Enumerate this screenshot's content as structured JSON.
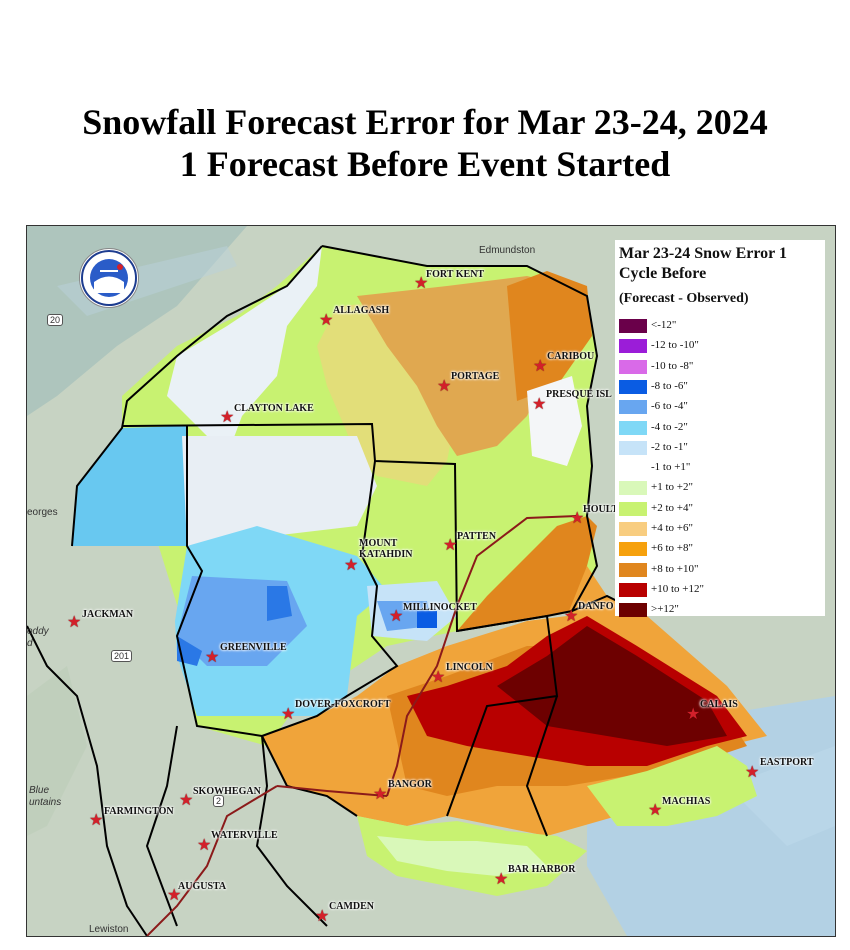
{
  "title_line1": "Snowfall Forecast Error for Mar 23-24, 2024",
  "title_line2": "1 Forecast Before Event Started",
  "legend": {
    "title": "Mar 23-24 Snow Error 1 Cycle Before",
    "subtitle": "(Forecast - Observed)",
    "items": [
      {
        "label": "<-12\"",
        "color": "#6a004a"
      },
      {
        "label": "-12 to -10\"",
        "color": "#9b1dd8"
      },
      {
        "label": "-10 to -8\"",
        "color": "#d96ae8"
      },
      {
        "label": "-8 to -6\"",
        "color": "#0a5ce3"
      },
      {
        "label": "-6 to -4\"",
        "color": "#68a6f0"
      },
      {
        "label": "-4 to -2\"",
        "color": "#7fd8f6"
      },
      {
        "label": "-2 to -1\"",
        "color": "#c6e3f8"
      },
      {
        "label": "-1 to +1\"",
        "color": "#ffffff"
      },
      {
        "label": "+1 to +2\"",
        "color": "#d9f8b9"
      },
      {
        "label": "+2 to +4\"",
        "color": "#c8f271"
      },
      {
        "label": "+4 to +6\"",
        "color": "#f8cd80"
      },
      {
        "label": "+6 to +8\"",
        "color": "#f6a10d"
      },
      {
        "label": "+8 to +10\"",
        "color": "#e0861e"
      },
      {
        "label": "+10 to +12\"",
        "color": "#b80000"
      },
      {
        "label": ">+12\"",
        "color": "#6d0000"
      }
    ]
  },
  "background_labels": {
    "edmundston": "Edmundston",
    "georges": "eorges",
    "blue_mountains_1": "Blue",
    "blue_mountains_2": "untains",
    "lewiston": "Lewiston",
    "roddy_1": "oddy",
    "roddy_2": "d",
    "route_20": "20",
    "route_201": "201",
    "route_2": "2"
  },
  "cities": [
    {
      "key": "fort_kent",
      "name": "FORT KENT"
    },
    {
      "key": "allagash",
      "name": "ALLAGASH"
    },
    {
      "key": "caribou",
      "name": "CARIBOU"
    },
    {
      "key": "portage",
      "name": "PORTAGE"
    },
    {
      "key": "presque_isle",
      "name": "PRESQUE ISL"
    },
    {
      "key": "clayton_lake",
      "name": "CLAYTON LAKE"
    },
    {
      "key": "houlton",
      "name": "HOULT"
    },
    {
      "key": "patten",
      "name": "PATTEN"
    },
    {
      "key": "mount_katahdin_1",
      "name": "MOUNT"
    },
    {
      "key": "mount_katahdin_2",
      "name": "KATAHDIN"
    },
    {
      "key": "jackman",
      "name": "JACKMAN"
    },
    {
      "key": "millinocket",
      "name": "MILLINOCKET"
    },
    {
      "key": "danforth",
      "name": "DANFO"
    },
    {
      "key": "greenville",
      "name": "GREENVILLE"
    },
    {
      "key": "lincoln",
      "name": "LINCOLN"
    },
    {
      "key": "dover_foxcroft",
      "name": "DOVER-FOXCROFT"
    },
    {
      "key": "calais",
      "name": "CALAIS"
    },
    {
      "key": "eastport",
      "name": "EASTPORT"
    },
    {
      "key": "skowhegan",
      "name": "SKOWHEGAN"
    },
    {
      "key": "bangor",
      "name": "BANGOR"
    },
    {
      "key": "machias",
      "name": "MACHIAS"
    },
    {
      "key": "farmington",
      "name": "FARMINGTON"
    },
    {
      "key": "waterville",
      "name": "WATERVILLE"
    },
    {
      "key": "bar_harbor",
      "name": "BAR HARBOR"
    },
    {
      "key": "augusta",
      "name": "AUGUSTA"
    },
    {
      "key": "camden",
      "name": "CAMDEN"
    }
  ]
}
